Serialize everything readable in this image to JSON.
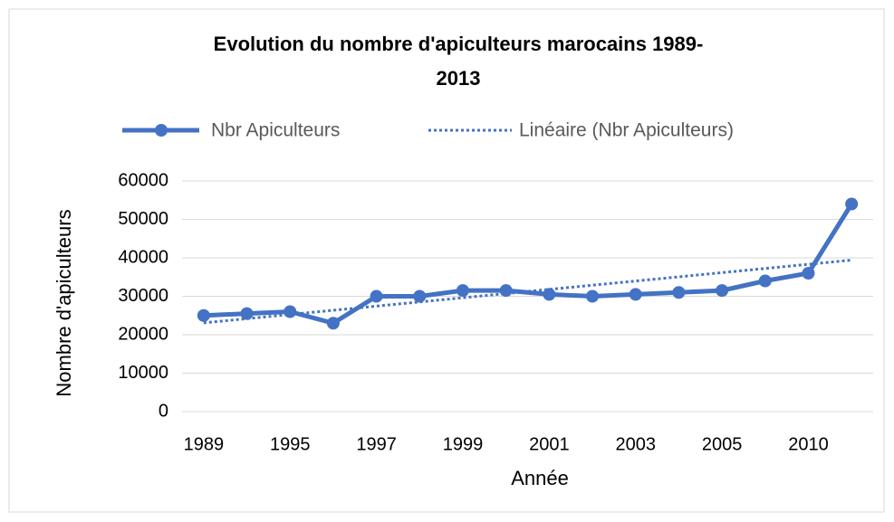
{
  "chart_data": {
    "type": "line",
    "title": [
      "Evolution du nombre d'apiculteurs marocains 1989-",
      "2013"
    ],
    "x_label": "Année",
    "y_label": "Nombre d'apiculteurs",
    "categories": [
      "1989",
      null,
      "1995",
      null,
      "1997",
      null,
      "1999",
      null,
      "2001",
      null,
      "2003",
      null,
      "2005",
      null,
      "2010",
      null
    ],
    "series": [
      {
        "name": "Nbr Apiculteurs",
        "color": "#4472c4",
        "values": [
          25000,
          25500,
          26000,
          23000,
          30000,
          30000,
          31500,
          31500,
          30500,
          30000,
          30500,
          31000,
          31500,
          34000,
          36000,
          54000
        ]
      }
    ],
    "trendline": {
      "name": "Linéaire (Nbr Apiculteurs)",
      "kind": "linear",
      "color": "#4472c4"
    },
    "ylim": [
      0,
      60000
    ],
    "yticks": [
      0,
      10000,
      20000,
      30000,
      40000,
      50000,
      60000
    ],
    "grid": true,
    "legend": "top"
  }
}
